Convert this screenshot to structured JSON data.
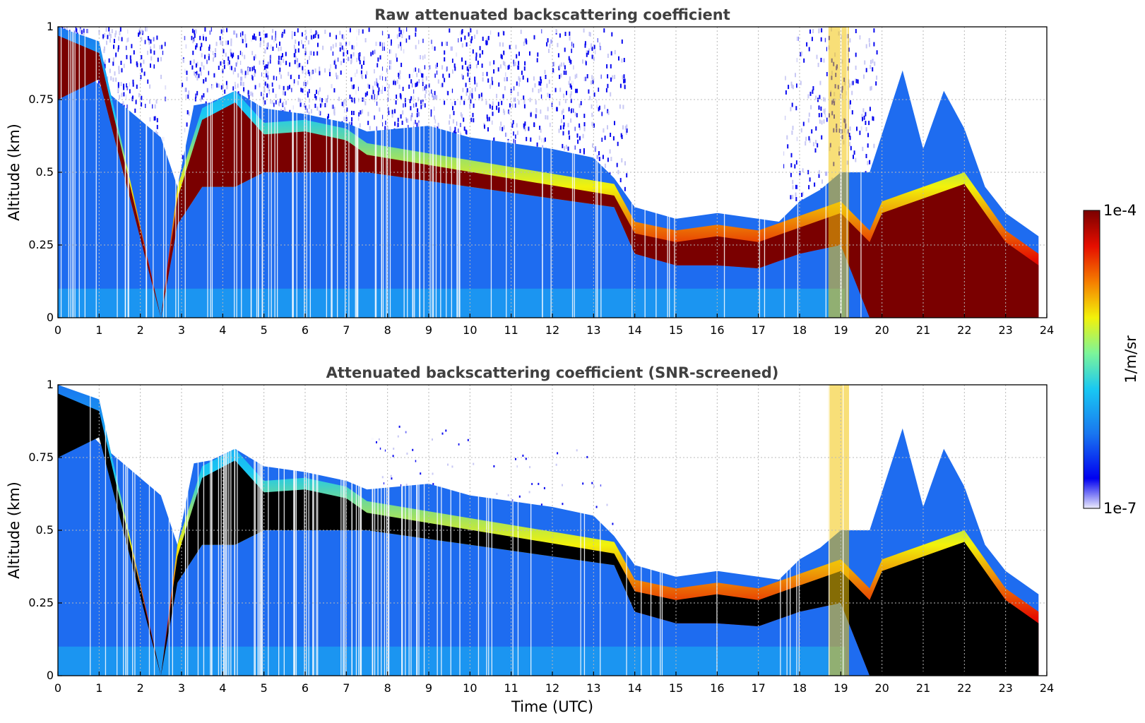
{
  "chart_data": [
    {
      "type": "heatmap",
      "title": "Raw attenuated backscattering coefficient",
      "ylabel": "Altitude (km)",
      "xlabel": "",
      "xlim": [
        0,
        24
      ],
      "ylim": [
        0,
        1
      ],
      "x_ticks": [
        "0",
        "1",
        "2",
        "3",
        "4",
        "5",
        "6",
        "7",
        "8",
        "9",
        "10",
        "11",
        "12",
        "13",
        "14",
        "15",
        "16",
        "17",
        "18",
        "19",
        "20",
        "21",
        "22",
        "23",
        "24"
      ],
      "y_ticks": [
        "0",
        "0.25",
        "0.5",
        "0.75",
        "1"
      ],
      "grid": true,
      "colormap": "jet-like",
      "screened": false,
      "aerosol_layer_top_km": {
        "x": [
          0,
          1,
          2.5,
          2.9,
          3.3,
          3.7,
          4.3,
          5,
          6,
          7,
          7.5,
          9,
          10,
          11,
          12,
          13,
          13.5,
          14,
          15,
          16,
          17,
          17.5,
          18,
          18.5,
          19,
          19.7,
          20.5,
          21,
          21.5,
          22,
          22.5,
          23,
          23.8
        ],
        "y": [
          0.95,
          0.8,
          0.62,
          0.45,
          0.73,
          0.74,
          0.78,
          0.72,
          0.7,
          0.67,
          0.64,
          0.66,
          0.62,
          0.6,
          0.58,
          0.55,
          0.48,
          0.38,
          0.34,
          0.36,
          0.34,
          0.33,
          0.4,
          0.44,
          0.5,
          0.5,
          0.85,
          0.58,
          0.78,
          0.65,
          0.45,
          0.36,
          0.28
        ]
      },
      "strong_layer_km": {
        "x": [
          0,
          1,
          2.5,
          2.9,
          3.5,
          4.3,
          5,
          6,
          7,
          7.5,
          13.5,
          14,
          15,
          16,
          17,
          18,
          19,
          19.7,
          20,
          21,
          22,
          23,
          23.8
        ],
        "bottom": [
          0.75,
          0.82,
          0,
          0.32,
          0.45,
          0.45,
          0.5,
          0.5,
          0.5,
          0.5,
          0.38,
          0.22,
          0.18,
          0.18,
          0.17,
          0.22,
          0.25,
          0,
          0,
          0,
          0,
          0,
          0
        ],
        "top": [
          1.0,
          0.95,
          0,
          0.45,
          0.72,
          0.78,
          0.67,
          0.68,
          0.65,
          0.6,
          0.46,
          0.33,
          0.3,
          0.32,
          0.3,
          0.35,
          0.4,
          0.3,
          0.4,
          0.45,
          0.5,
          0.3,
          0.22
        ]
      }
    },
    {
      "type": "heatmap",
      "title": "Attenuated backscattering coefficient (SNR-screened)",
      "ylabel": "Altitude (km)",
      "xlabel": "Time (UTC)",
      "xlim": [
        0,
        24
      ],
      "ylim": [
        0,
        1
      ],
      "x_ticks": [
        "0",
        "1",
        "2",
        "3",
        "4",
        "5",
        "6",
        "7",
        "8",
        "9",
        "10",
        "11",
        "12",
        "13",
        "14",
        "15",
        "16",
        "17",
        "18",
        "19",
        "20",
        "21",
        "22",
        "23",
        "24"
      ],
      "y_ticks": [
        "0",
        "0.25",
        "0.5",
        "0.75",
        "1"
      ],
      "grid": true,
      "colormap": "jet-like",
      "screened": true,
      "saturated_color": "#000000",
      "aerosol_layer_top_km": {
        "x": [
          0,
          1,
          2.5,
          2.9,
          3.3,
          3.7,
          4.3,
          5,
          6,
          7,
          7.5,
          9,
          10,
          11,
          12,
          13,
          13.5,
          14,
          15,
          16,
          17,
          17.5,
          18,
          18.5,
          19,
          19.7,
          20.5,
          21,
          21.5,
          22,
          22.5,
          23,
          23.8
        ],
        "y": [
          0.95,
          0.8,
          0.62,
          0.45,
          0.73,
          0.74,
          0.78,
          0.72,
          0.7,
          0.67,
          0.64,
          0.66,
          0.62,
          0.6,
          0.58,
          0.55,
          0.48,
          0.38,
          0.34,
          0.36,
          0.34,
          0.33,
          0.4,
          0.44,
          0.5,
          0.5,
          0.85,
          0.58,
          0.78,
          0.65,
          0.45,
          0.36,
          0.28
        ]
      },
      "strong_layer_km": {
        "x": [
          0,
          1,
          2.5,
          2.9,
          3.5,
          4.3,
          5,
          6,
          7,
          7.5,
          13.5,
          14,
          15,
          16,
          17,
          18,
          19,
          19.7,
          20,
          21,
          22,
          23,
          23.8
        ],
        "bottom": [
          0.75,
          0.82,
          0,
          0.32,
          0.45,
          0.45,
          0.5,
          0.5,
          0.5,
          0.5,
          0.38,
          0.22,
          0.18,
          0.18,
          0.17,
          0.22,
          0.25,
          0,
          0,
          0,
          0,
          0,
          0
        ],
        "top": [
          1.0,
          0.95,
          0,
          0.45,
          0.72,
          0.78,
          0.67,
          0.68,
          0.65,
          0.6,
          0.46,
          0.33,
          0.3,
          0.32,
          0.3,
          0.35,
          0.4,
          0.3,
          0.4,
          0.45,
          0.5,
          0.3,
          0.22
        ]
      }
    }
  ],
  "colorbar": {
    "label": "1/m/sr",
    "max_label": "1e-4",
    "min_label": "1e-7",
    "scale": "log",
    "range": [
      1e-07,
      0.0001
    ],
    "colors": [
      "#ecebfb",
      "#0000f0",
      "#1976f0",
      "#19c8f2",
      "#7cf59a",
      "#f2f20a",
      "#f57e00",
      "#e60e00",
      "#7a0000"
    ]
  }
}
